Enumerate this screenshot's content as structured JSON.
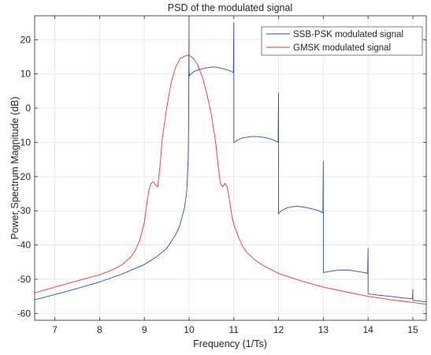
{
  "chart_data": {
    "type": "line",
    "title": "PSD of the modulated signal",
    "xlabel": "Frequency (1/Ts)",
    "ylabel": "Power Spectrum Magnitude (dB)",
    "xlim": [
      6.55,
      15.3
    ],
    "ylim": [
      -62,
      27
    ],
    "xticks": [
      7,
      8,
      9,
      10,
      11,
      12,
      13,
      14,
      15
    ],
    "yticks": [
      -60,
      -50,
      -40,
      -30,
      -20,
      -10,
      0,
      10,
      20
    ],
    "grid": true,
    "legend_position": "top-right",
    "series": [
      {
        "name": "SSB-PSK modulated signal",
        "color": "#2b4ea0",
        "x": [
          6.55,
          7.0,
          7.5,
          8.0,
          8.5,
          9.0,
          9.3,
          9.5,
          9.7,
          9.8,
          9.9,
          9.95,
          9.98,
          9.99,
          10.0,
          10.0,
          10.0,
          10.01,
          10.05,
          10.1,
          10.2,
          10.3,
          10.4,
          10.5,
          10.6,
          10.7,
          10.8,
          10.9,
          10.99,
          11.0,
          11.0,
          11.0,
          11.01,
          11.1,
          11.2,
          11.3,
          11.4,
          11.5,
          11.6,
          11.7,
          11.8,
          11.9,
          11.99,
          12.0,
          12.0,
          12.0,
          12.01,
          12.1,
          12.2,
          12.3,
          12.4,
          12.5,
          12.6,
          12.7,
          12.8,
          12.9,
          12.99,
          13.0,
          13.0,
          13.0,
          13.01,
          13.1,
          13.2,
          13.3,
          13.4,
          13.5,
          13.6,
          13.7,
          13.8,
          13.9,
          13.99,
          14.0,
          14.0,
          14.0,
          14.01,
          14.2,
          14.5,
          14.8,
          14.99,
          15.0,
          15.0,
          15.0,
          15.01,
          15.3
        ],
        "y": [
          -56,
          -54.5,
          -52.7,
          -50.8,
          -48.5,
          -45.7,
          -43.2,
          -41,
          -37,
          -34,
          -29,
          -24,
          -15,
          -5,
          26,
          9,
          11,
          9.5,
          10,
          10.6,
          11.2,
          11.5,
          11.8,
          12,
          12,
          11.7,
          11.4,
          11,
          10.4,
          25,
          -10,
          -10,
          -10,
          -9.2,
          -8.7,
          -8.5,
          -8.3,
          -8.3,
          -8.4,
          -8.6,
          -8.9,
          -9.4,
          -10,
          4.5,
          -31,
          -31,
          -30.5,
          -29.7,
          -29.1,
          -28.8,
          -28.7,
          -28.8,
          -29,
          -29.3,
          -29.6,
          -30,
          -30.6,
          -15.5,
          -48,
          -48,
          -48,
          -47.8,
          -47.6,
          -47.4,
          -47.3,
          -47.3,
          -47.4,
          -47.6,
          -47.8,
          -48,
          -48.3,
          -41,
          -54,
          -54.2,
          -54.3,
          -54.6,
          -55,
          -55.5,
          -55.7,
          -53,
          -56,
          -56.1,
          -56.2,
          -56.6
        ]
      },
      {
        "name": "GMSK modulated signal",
        "color": "#e8323c",
        "x": [
          6.55,
          7.0,
          7.5,
          8.0,
          8.3,
          8.5,
          8.7,
          8.8,
          8.9,
          9.0,
          9.05,
          9.1,
          9.15,
          9.2,
          9.25,
          9.3,
          9.35,
          9.4,
          9.5,
          9.6,
          9.7,
          9.8,
          9.9,
          10.0,
          10.1,
          10.2,
          10.3,
          10.4,
          10.5,
          10.6,
          10.65,
          10.7,
          10.75,
          10.8,
          10.85,
          10.9,
          10.95,
          11.0,
          11.1,
          11.2,
          11.3,
          11.5,
          11.7,
          12.0,
          12.5,
          13.0,
          13.5,
          14.0,
          14.5,
          15.0,
          15.3
        ],
        "y": [
          -54,
          -52.3,
          -50.5,
          -48.7,
          -47.2,
          -45.8,
          -43.5,
          -41.5,
          -38.5,
          -33.5,
          -28.5,
          -24,
          -22,
          -21.5,
          -22.5,
          -23,
          -17,
          -9,
          0,
          7.5,
          12,
          14.5,
          15.2,
          15.5,
          14.5,
          12.5,
          9,
          4,
          -2,
          -10.5,
          -17,
          -22,
          -23,
          -22,
          -23,
          -26.5,
          -31,
          -34,
          -37.5,
          -40.5,
          -42.3,
          -44.7,
          -46.3,
          -48.3,
          -50.5,
          -52.3,
          -53.7,
          -55,
          -56,
          -56.8,
          -57.3
        ]
      }
    ]
  }
}
